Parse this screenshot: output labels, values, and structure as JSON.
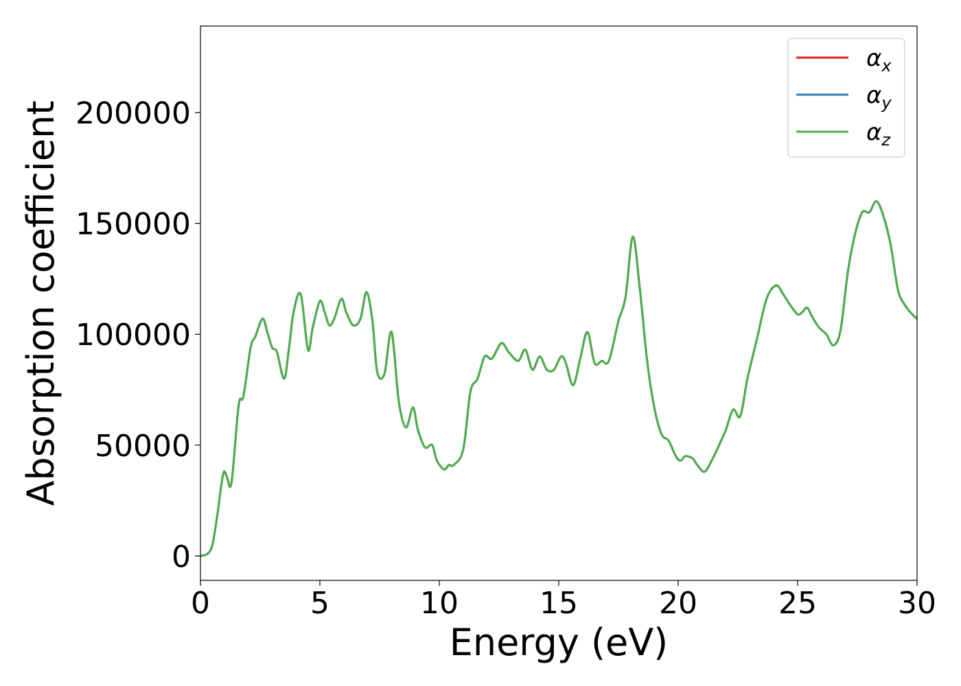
{
  "chart_data": {
    "type": "line",
    "title": "",
    "xlabel": "Energy (eV)",
    "ylabel": "Absorption coefficient",
    "xlim": [
      0,
      30
    ],
    "ylim": [
      -11000,
      239000
    ],
    "xticks": [
      0,
      5,
      10,
      15,
      20,
      25,
      30
    ],
    "yticks": [
      0,
      50000,
      100000,
      150000,
      200000
    ],
    "grid": false,
    "legend": {
      "placement": "top-right",
      "entries": [
        {
          "symbol": "α",
          "sub": "x",
          "color": "#e41a1c"
        },
        {
          "symbol": "α",
          "sub": "y",
          "color": "#377eb8"
        },
        {
          "symbol": "α",
          "sub": "z",
          "color": "#4daf4a"
        }
      ]
    },
    "x": [
      0,
      0.3,
      0.5,
      0.7,
      0.95,
      1.1,
      1.3,
      1.6,
      1.8,
      2.1,
      2.3,
      2.6,
      2.8,
      3.0,
      3.2,
      3.5,
      3.7,
      3.9,
      4.2,
      4.5,
      4.7,
      5.0,
      5.2,
      5.4,
      5.6,
      5.9,
      6.1,
      6.4,
      6.7,
      6.95,
      7.2,
      7.4,
      7.7,
      8.0,
      8.3,
      8.6,
      8.9,
      9.1,
      9.4,
      9.7,
      9.9,
      10.2,
      10.4,
      10.6,
      11.0,
      11.3,
      11.6,
      11.9,
      12.2,
      12.6,
      12.9,
      13.3,
      13.6,
      13.9,
      14.2,
      14.5,
      14.8,
      15.1,
      15.3,
      15.6,
      15.9,
      16.2,
      16.5,
      16.8,
      17.1,
      17.5,
      17.8,
      18.1,
      18.4,
      18.7,
      19.0,
      19.3,
      19.6,
      19.9,
      20.1,
      20.3,
      20.6,
      20.8,
      21.1,
      21.4,
      21.8,
      22.0,
      22.3,
      22.6,
      22.9,
      23.3,
      23.7,
      24.1,
      24.4,
      24.7,
      25.0,
      25.2,
      25.4,
      25.6,
      25.9,
      26.2,
      26.5,
      26.8,
      27.1,
      27.4,
      27.7,
      28.0,
      28.3,
      28.6,
      28.9,
      29.2,
      29.5,
      29.8,
      30.0
    ],
    "series": [
      {
        "name": "αx",
        "color": "#e41a1c",
        "values": [
          0,
          1000,
          5000,
          18000,
          37000,
          36000,
          33000,
          68000,
          72000,
          94000,
          99000,
          107000,
          101000,
          94000,
          92000,
          80000,
          93000,
          110000,
          118000,
          93000,
          103000,
          115000,
          110000,
          104000,
          107000,
          116000,
          110000,
          104000,
          107000,
          119000,
          106000,
          83000,
          82000,
          101000,
          70000,
          58000,
          67000,
          57000,
          49000,
          50000,
          43000,
          39000,
          41000,
          41000,
          48000,
          74000,
          80000,
          90000,
          89000,
          96000,
          92000,
          88000,
          93000,
          84000,
          90000,
          84000,
          84000,
          90000,
          87000,
          77000,
          89000,
          101000,
          87000,
          88000,
          88000,
          106000,
          117000,
          144000,
          120000,
          88000,
          67000,
          55000,
          52000,
          45000,
          43000,
          45000,
          44000,
          41000,
          38000,
          43000,
          52000,
          57000,
          66000,
          63000,
          80000,
          98000,
          116000,
          122000,
          118000,
          113000,
          109000,
          110000,
          112000,
          108000,
          103000,
          100000,
          95000,
          102000,
          128000,
          145000,
          155000,
          155000,
          160000,
          153000,
          140000,
          120000,
          113000,
          109000,
          107000
        ]
      },
      {
        "name": "αy",
        "color": "#377eb8",
        "values": [
          0,
          1000,
          5000,
          18000,
          37000,
          36000,
          33000,
          68000,
          72000,
          94000,
          99000,
          107000,
          101000,
          94000,
          92000,
          80000,
          93000,
          110000,
          118000,
          93000,
          103000,
          115000,
          110000,
          104000,
          107000,
          116000,
          110000,
          104000,
          107000,
          119000,
          106000,
          83000,
          82000,
          101000,
          70000,
          58000,
          67000,
          57000,
          49000,
          50000,
          43000,
          39000,
          41000,
          41000,
          48000,
          74000,
          80000,
          90000,
          89000,
          96000,
          92000,
          88000,
          93000,
          84000,
          90000,
          84000,
          84000,
          90000,
          87000,
          77000,
          89000,
          101000,
          87000,
          88000,
          88000,
          106000,
          117000,
          144000,
          120000,
          88000,
          67000,
          55000,
          52000,
          45000,
          43000,
          45000,
          44000,
          41000,
          38000,
          43000,
          52000,
          57000,
          66000,
          63000,
          80000,
          98000,
          116000,
          122000,
          118000,
          113000,
          109000,
          110000,
          112000,
          108000,
          103000,
          100000,
          95000,
          102000,
          128000,
          145000,
          155000,
          155000,
          160000,
          153000,
          140000,
          120000,
          113000,
          109000,
          107000
        ]
      },
      {
        "name": "αz",
        "color": "#4daf4a",
        "values": [
          0,
          1000,
          5000,
          18000,
          37000,
          36000,
          33000,
          68000,
          72000,
          94000,
          99000,
          107000,
          101000,
          94000,
          92000,
          80000,
          93000,
          110000,
          118000,
          93000,
          103000,
          115000,
          110000,
          104000,
          107000,
          116000,
          110000,
          104000,
          107000,
          119000,
          106000,
          83000,
          82000,
          101000,
          70000,
          58000,
          67000,
          57000,
          49000,
          50000,
          43000,
          39000,
          41000,
          41000,
          48000,
          74000,
          80000,
          90000,
          89000,
          96000,
          92000,
          88000,
          93000,
          84000,
          90000,
          84000,
          84000,
          90000,
          87000,
          77000,
          89000,
          101000,
          87000,
          88000,
          88000,
          106000,
          117000,
          144000,
          120000,
          88000,
          67000,
          55000,
          52000,
          45000,
          43000,
          45000,
          44000,
          41000,
          38000,
          43000,
          52000,
          57000,
          66000,
          63000,
          80000,
          98000,
          116000,
          122000,
          118000,
          113000,
          109000,
          110000,
          112000,
          108000,
          103000,
          100000,
          95000,
          102000,
          128000,
          145000,
          155000,
          155000,
          160000,
          153000,
          140000,
          120000,
          113000,
          109000,
          107000
        ]
      }
    ]
  }
}
